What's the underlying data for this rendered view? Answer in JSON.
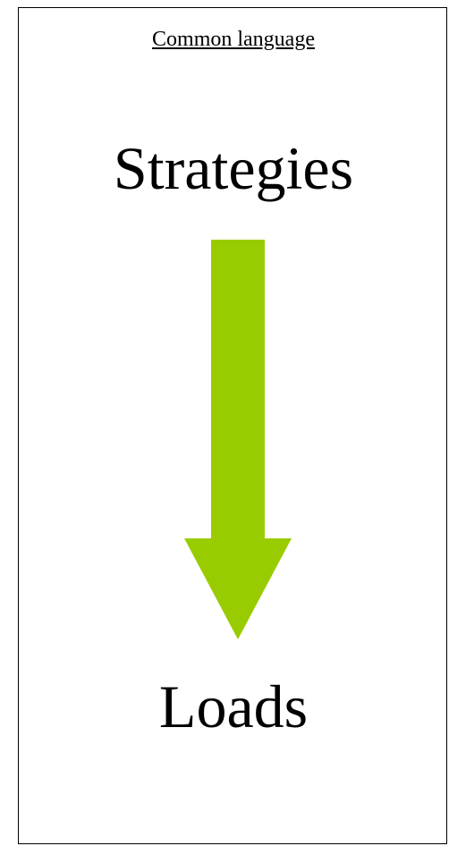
{
  "heading": "Common language",
  "source": "Strategies",
  "target": "Loads"
}
